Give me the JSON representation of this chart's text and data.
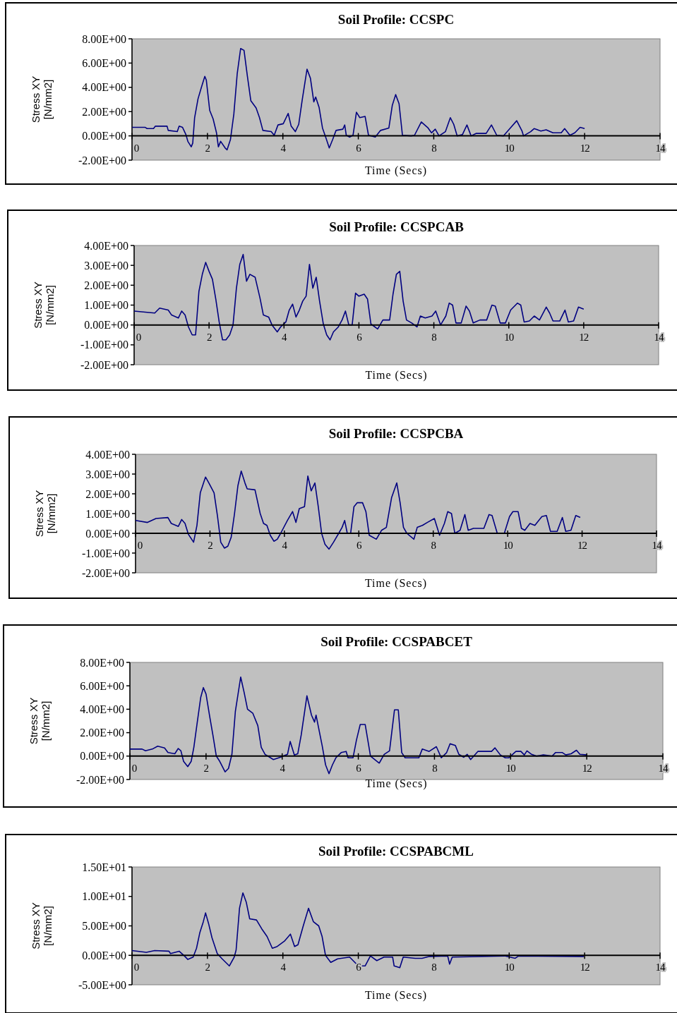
{
  "chart_data": [
    {
      "type": "line",
      "title": "Soil Profile: CCSPC",
      "xlabel": "Time (Secs)",
      "ylabel": "Stress XY [N/mm2]",
      "xlim": [
        0,
        14
      ],
      "xticks": [
        0,
        2,
        4,
        6,
        8,
        10,
        12,
        14
      ],
      "ylim": [
        -2,
        8
      ],
      "yticks": [
        {
          "value": -2,
          "label": "-2.00E+00"
        },
        {
          "value": 0,
          "label": "0.00E+00"
        },
        {
          "value": 2,
          "label": "2.00E+00"
        },
        {
          "value": 4,
          "label": "4.00E+00"
        },
        {
          "value": 6,
          "label": "6.00E+00"
        },
        {
          "value": 8,
          "label": "8.00E+00"
        }
      ],
      "grid": false,
      "x": [
        0,
        0.35,
        0.4,
        0.57,
        0.62,
        0.93,
        0.96,
        1.2,
        1.25,
        1.34,
        1.43,
        1.48,
        1.57,
        1.61,
        1.66,
        1.75,
        1.84,
        1.93,
        1.97,
        2.06,
        2.15,
        2.24,
        2.29,
        2.35,
        2.47,
        2.52,
        2.61,
        2.7,
        2.79,
        2.88,
        2.97,
        3.06,
        3.15,
        3.29,
        3.38,
        3.47,
        3.69,
        3.77,
        3.87,
        4.01,
        4.14,
        4.22,
        4.33,
        4.42,
        4.51,
        4.64,
        4.73,
        4.82,
        4.87,
        4.96,
        5.05,
        5.14,
        5.23,
        5.32,
        5.41,
        5.59,
        5.64,
        5.68,
        5.77,
        5.86,
        5.95,
        6.04,
        6.18,
        6.27,
        6.45,
        6.59,
        6.81,
        6.9,
        6.99,
        7.08,
        7.17,
        7.4,
        7.49,
        7.67,
        7.85,
        7.94,
        8.04,
        8.14,
        8.31,
        8.44,
        8.53,
        8.62,
        8.76,
        8.88,
        8.99,
        9.12,
        9.39,
        9.53,
        9.67,
        9.85,
        10.03,
        10.2,
        10.34,
        10.38,
        10.57,
        10.66,
        10.84,
        10.98,
        11.16,
        11.38,
        11.47,
        11.61,
        11.74,
        11.88,
        12.0
      ],
      "series": [
        {
          "color": "#000080",
          "values": [
            0.7,
            0.7,
            0.6,
            0.6,
            0.8,
            0.8,
            0.45,
            0.35,
            0.8,
            0.7,
            0.1,
            -0.45,
            -0.9,
            -0.6,
            1.5,
            3.05,
            4.0,
            4.9,
            4.6,
            2.1,
            1.4,
            0.25,
            -0.9,
            -0.45,
            -1.0,
            -1.15,
            -0.3,
            1.8,
            5.15,
            7.2,
            7.05,
            4.9,
            2.9,
            2.3,
            1.5,
            0.45,
            0.35,
            0.05,
            0.9,
            1.0,
            1.85,
            0.8,
            0.35,
            0.95,
            2.9,
            5.5,
            4.75,
            2.8,
            3.2,
            2.35,
            0.65,
            -0.15,
            -1.0,
            -0.3,
            0.45,
            0.55,
            0.9,
            0.05,
            -0.1,
            0.05,
            1.95,
            1.5,
            1.6,
            0.05,
            -0.1,
            0.45,
            0.65,
            2.5,
            3.4,
            2.65,
            0.05,
            0,
            0.05,
            1.15,
            0.65,
            0.25,
            0.55,
            0,
            0.35,
            1.5,
            0.95,
            0,
            0.1,
            0.9,
            0,
            0.2,
            0.2,
            0.9,
            0.05,
            0,
            0.65,
            1.25,
            0.4,
            0,
            0.35,
            0.6,
            0.4,
            0.5,
            0.25,
            0.25,
            0.6,
            0.05,
            0.25,
            0.7,
            0.6
          ]
        }
      ]
    },
    {
      "type": "line",
      "title": "Soil Profile: CCSPCAB",
      "xlabel": "Time (Secs)",
      "ylabel": "Stress XY [N/mm2]",
      "xlim": [
        0,
        14
      ],
      "xticks": [
        0,
        2,
        4,
        6,
        8,
        10,
        12,
        14
      ],
      "ylim": [
        -2,
        4
      ],
      "yticks": [
        {
          "value": -2,
          "label": "-2.00E+00"
        },
        {
          "value": -1,
          "label": "-1.00E+00"
        },
        {
          "value": 0,
          "label": "0.00E+00"
        },
        {
          "value": 1,
          "label": "1.00E+00"
        },
        {
          "value": 2,
          "label": "2.00E+00"
        },
        {
          "value": 3,
          "label": "3.00E+00"
        },
        {
          "value": 4,
          "label": "4.00E+00"
        }
      ],
      "grid": false,
      "x": [
        0,
        0.55,
        0.68,
        0.91,
        1.0,
        1.18,
        1.27,
        1.36,
        1.45,
        1.55,
        1.64,
        1.73,
        1.82,
        1.91,
        2.0,
        2.09,
        2.18,
        2.27,
        2.36,
        2.45,
        2.55,
        2.64,
        2.73,
        2.82,
        2.91,
        3.0,
        3.09,
        3.23,
        3.36,
        3.45,
        3.59,
        3.68,
        3.82,
        3.91,
        4.05,
        4.14,
        4.23,
        4.32,
        4.41,
        4.5,
        4.59,
        4.68,
        4.77,
        4.86,
        4.95,
        5.05,
        5.14,
        5.23,
        5.32,
        5.45,
        5.55,
        5.64,
        5.73,
        5.82,
        5.91,
        6.0,
        6.14,
        6.23,
        6.32,
        6.5,
        6.64,
        6.82,
        6.91,
        7.0,
        7.09,
        7.18,
        7.27,
        7.41,
        7.55,
        7.64,
        7.77,
        7.95,
        8.05,
        8.18,
        8.32,
        8.41,
        8.5,
        8.59,
        8.73,
        8.86,
        8.95,
        9.05,
        9.23,
        9.41,
        9.55,
        9.64,
        9.77,
        9.91,
        10.05,
        10.23,
        10.32,
        10.41,
        10.55,
        10.68,
        10.82,
        11.0,
        11.09,
        11.18,
        11.36,
        11.5,
        11.59,
        11.73,
        11.86,
        12.0
      ],
      "series": [
        {
          "color": "#000080",
          "values": [
            0.7,
            0.6,
            0.85,
            0.75,
            0.5,
            0.35,
            0.7,
            0.5,
            -0.1,
            -0.5,
            -0.5,
            1.7,
            2.55,
            3.15,
            2.7,
            2.3,
            1.3,
            0.15,
            -0.75,
            -0.75,
            -0.5,
            0,
            1.85,
            3.05,
            3.55,
            2.2,
            2.55,
            2.4,
            1.35,
            0.5,
            0.4,
            0,
            -0.35,
            -0.1,
            0.15,
            0.75,
            1.05,
            0.4,
            0.75,
            1.2,
            1.45,
            3.05,
            1.85,
            2.4,
            1.2,
            0.05,
            -0.5,
            -0.75,
            -0.35,
            -0.1,
            0.25,
            0.7,
            0,
            0,
            1.6,
            1.45,
            1.55,
            1.3,
            0.05,
            -0.2,
            0.25,
            0.25,
            1.55,
            2.55,
            2.7,
            1.2,
            0.25,
            0.1,
            -0.1,
            0.45,
            0.35,
            0.45,
            0.7,
            0,
            0.45,
            1.1,
            1.0,
            0.1,
            0.1,
            0.95,
            0.7,
            0.1,
            0.25,
            0.25,
            1.0,
            0.95,
            0.1,
            0.1,
            0.75,
            1.1,
            1.0,
            0.15,
            0.2,
            0.45,
            0.25,
            0.9,
            0.6,
            0.2,
            0.2,
            0.75,
            0.15,
            0.2,
            0.9,
            0.8
          ]
        }
      ]
    },
    {
      "type": "line",
      "title": "Soil Profile: CCSPCBA",
      "xlabel": "Time (Secs)",
      "ylabel": "Stress XY [N/mm2]",
      "xlim": [
        0,
        14
      ],
      "xticks": [
        0,
        2,
        4,
        6,
        8,
        10,
        12,
        14
      ],
      "ylim": [
        -2,
        4
      ],
      "yticks": [
        {
          "value": -2,
          "label": "-2.00E+00"
        },
        {
          "value": -1,
          "label": "-1.00E+00"
        },
        {
          "value": 0,
          "label": "0.00E+00"
        },
        {
          "value": 1,
          "label": "1.00E+00"
        },
        {
          "value": 2,
          "label": "2.00E+00"
        },
        {
          "value": 3,
          "label": "3.00E+00"
        },
        {
          "value": 4,
          "label": "4.00E+00"
        }
      ],
      "grid": false,
      "x": [
        0,
        0.32,
        0.55,
        0.87,
        0.96,
        1.15,
        1.24,
        1.33,
        1.42,
        1.56,
        1.65,
        1.74,
        1.88,
        1.97,
        2.11,
        2.2,
        2.29,
        2.39,
        2.48,
        2.57,
        2.66,
        2.75,
        2.84,
        2.94,
        3.0,
        3.21,
        3.35,
        3.44,
        3.53,
        3.62,
        3.72,
        3.81,
        3.9,
        4.08,
        4.22,
        4.31,
        4.4,
        4.54,
        4.63,
        4.72,
        4.82,
        4.91,
        5.0,
        5.09,
        5.2,
        5.32,
        5.46,
        5.55,
        5.62,
        5.69,
        5.78,
        5.87,
        5.96,
        6.1,
        6.19,
        6.28,
        6.47,
        6.61,
        6.74,
        6.88,
        7.02,
        7.11,
        7.2,
        7.29,
        7.48,
        7.57,
        7.71,
        7.84,
        8.03,
        8.17,
        8.3,
        8.39,
        8.49,
        8.58,
        8.72,
        8.85,
        8.94,
        9.08,
        9.36,
        9.5,
        9.58,
        9.72,
        9.91,
        10.05,
        10.14,
        10.28,
        10.37,
        10.46,
        10.6,
        10.73,
        10.92,
        11.04,
        11.15,
        11.33,
        11.47,
        11.56,
        11.7,
        11.83,
        11.95
      ],
      "series": [
        {
          "color": "#000080",
          "values": [
            0.65,
            0.55,
            0.75,
            0.8,
            0.5,
            0.35,
            0.7,
            0.5,
            -0.05,
            -0.45,
            0.4,
            2.05,
            2.85,
            2.55,
            2.05,
            0.9,
            -0.45,
            -0.75,
            -0.65,
            -0.2,
            1.0,
            2.4,
            3.15,
            2.55,
            2.25,
            2.2,
            1.0,
            0.5,
            0.4,
            -0.1,
            -0.4,
            -0.3,
            0,
            0.65,
            1.1,
            0.55,
            1.25,
            1.35,
            2.9,
            2.15,
            2.55,
            1.35,
            0,
            -0.55,
            -0.8,
            -0.45,
            0,
            0.3,
            0.65,
            0,
            0,
            1.35,
            1.55,
            1.55,
            1.1,
            -0.1,
            -0.3,
            0.15,
            0.3,
            1.8,
            2.55,
            1.55,
            0.3,
            0,
            -0.3,
            0.3,
            0.4,
            0.55,
            0.75,
            -0.1,
            0.5,
            1.1,
            1.0,
            0,
            0.15,
            0.95,
            0.15,
            0.25,
            0.25,
            0.95,
            0.9,
            0,
            0,
            0.85,
            1.1,
            1.1,
            0.25,
            0.15,
            0.5,
            0.4,
            0.85,
            0.9,
            0.1,
            0.1,
            0.8,
            0.1,
            0.15,
            0.9,
            0.8
          ]
        }
      ]
    },
    {
      "type": "line",
      "title": "Soil Profile: CCSPABCET",
      "xlabel": "Time (Secs)",
      "ylabel": "Stress XY [N/mm2]",
      "xlim": [
        0,
        14
      ],
      "xticks": [
        0,
        2,
        4,
        6,
        8,
        10,
        12,
        14
      ],
      "ylim": [
        -2,
        8
      ],
      "yticks": [
        {
          "value": -2,
          "label": "-2.00E+00"
        },
        {
          "value": 0,
          "label": "0.00E+00"
        },
        {
          "value": 2,
          "label": "2.00E+00"
        },
        {
          "value": 4,
          "label": "4.00E+00"
        },
        {
          "value": 6,
          "label": "6.00E+00"
        },
        {
          "value": 8,
          "label": "8.00E+00"
        }
      ],
      "grid": false,
      "x": [
        0,
        0.32,
        0.41,
        0.59,
        0.73,
        0.91,
        1.0,
        1.18,
        1.27,
        1.34,
        1.41,
        1.52,
        1.61,
        1.68,
        1.77,
        1.86,
        1.93,
        2.0,
        2.09,
        2.18,
        2.27,
        2.36,
        2.5,
        2.59,
        2.68,
        2.77,
        2.91,
        3.0,
        3.09,
        3.23,
        3.36,
        3.45,
        3.55,
        3.77,
        3.95,
        4.14,
        4.21,
        4.32,
        4.41,
        4.5,
        4.65,
        4.77,
        4.85,
        4.89,
        5.05,
        5.14,
        5.23,
        5.32,
        5.41,
        5.55,
        5.68,
        5.73,
        5.86,
        5.95,
        6.05,
        6.18,
        6.32,
        6.55,
        6.68,
        6.82,
        6.95,
        7.05,
        7.14,
        7.23,
        7.59,
        7.68,
        7.86,
        8.05,
        8.18,
        8.32,
        8.41,
        8.55,
        8.64,
        8.77,
        8.86,
        8.95,
        9.14,
        9.5,
        9.59,
        9.73,
        9.86,
        9.95,
        10.14,
        10.27,
        10.36,
        10.43,
        10.55,
        10.68,
        10.86,
        11.09,
        11.18,
        11.36,
        11.45,
        11.59,
        11.73,
        11.82,
        12.0
      ],
      "series": [
        {
          "color": "#000080",
          "values": [
            0.6,
            0.6,
            0.45,
            0.6,
            0.85,
            0.7,
            0.3,
            0.2,
            0.65,
            0.45,
            -0.45,
            -0.9,
            -0.45,
            0.75,
            2.9,
            5.0,
            5.85,
            5.3,
            3.5,
            1.8,
            0,
            -0.45,
            -1.35,
            -1.05,
            0.15,
            3.8,
            6.75,
            5.45,
            4.0,
            3.65,
            2.6,
            0.75,
            0.15,
            -0.3,
            -0.1,
            0.15,
            1.25,
            0.1,
            0.2,
            1.8,
            5.15,
            3.5,
            2.9,
            3.5,
            0.9,
            -0.75,
            -1.5,
            -0.75,
            -0.15,
            0.3,
            0.4,
            -0.15,
            -0.15,
            1.35,
            2.7,
            2.7,
            0,
            -0.6,
            0.15,
            0.45,
            3.95,
            3.95,
            0.3,
            -0.15,
            -0.15,
            0.6,
            0.4,
            0.8,
            -0.15,
            0.3,
            1.05,
            0.9,
            0.15,
            -0.1,
            0.15,
            -0.3,
            0.4,
            0.4,
            0.7,
            0.1,
            -0.15,
            -0.15,
            0.4,
            0.4,
            0.1,
            0.45,
            0.15,
            0,
            0.1,
            0,
            0.3,
            0.3,
            0.1,
            0.2,
            0.5,
            0.15,
            0.1
          ]
        }
      ]
    },
    {
      "type": "line",
      "title": "Soil Profile: CCSPABCML",
      "xlabel": "Time (Secs)",
      "ylabel": "Stress XY [N/mm2]",
      "xlim": [
        0,
        14
      ],
      "xticks": [
        0,
        2,
        4,
        6,
        8,
        10,
        12,
        14
      ],
      "ylim": [
        -5,
        15
      ],
      "yticks": [
        {
          "value": -5,
          "label": "-5.00E+00"
        },
        {
          "value": 0,
          "label": "0.00E+00"
        },
        {
          "value": 5,
          "label": "5.00E+00"
        },
        {
          "value": 10,
          "label": "1.00E+01"
        },
        {
          "value": 15,
          "label": "1.50E+01"
        }
      ],
      "grid": false,
      "x": [
        0,
        0.38,
        0.6,
        0.98,
        1.02,
        1.25,
        1.39,
        1.48,
        1.62,
        1.71,
        1.8,
        1.89,
        1.95,
        2.03,
        2.12,
        2.26,
        2.39,
        2.58,
        2.71,
        2.76,
        2.85,
        2.94,
        3.03,
        3.12,
        3.3,
        3.44,
        3.58,
        3.72,
        3.85,
        4.04,
        4.2,
        4.31,
        4.4,
        4.54,
        4.68,
        4.81,
        4.95,
        5.04,
        5.13,
        5.27,
        5.45,
        5.77,
        6.0,
        6.18,
        6.32,
        6.49,
        6.68,
        6.91,
        6.95,
        7.1,
        7.19,
        7.51,
        7.69,
        7.87,
        8.37,
        8.42,
        8.49,
        9.88,
        10.16,
        10.25,
        11.98
      ],
      "series": [
        {
          "color": "#000080",
          "values": [
            0.8,
            0.5,
            0.8,
            0.7,
            0.3,
            0.7,
            -0.1,
            -0.7,
            -0.3,
            1.2,
            3.9,
            5.7,
            7.2,
            5.4,
            3.0,
            0.3,
            -0.6,
            -1.8,
            -0.3,
            0.9,
            8.0,
            10.6,
            9.0,
            6.2,
            6.0,
            4.5,
            3.2,
            1.2,
            1.5,
            2.4,
            3.6,
            1.5,
            1.8,
            5.0,
            8.0,
            5.7,
            5.0,
            3.2,
            0,
            -1.2,
            -0.6,
            -0.3,
            -1.8,
            -1.8,
            -0.1,
            -0.9,
            -0.3,
            -0.3,
            -1.8,
            -2.1,
            -0.3,
            -0.5,
            -0.5,
            -0.2,
            -0.1,
            -1.5,
            -0.3,
            -0.1,
            -0.5,
            -0.1,
            -0.2
          ]
        }
      ]
    }
  ]
}
